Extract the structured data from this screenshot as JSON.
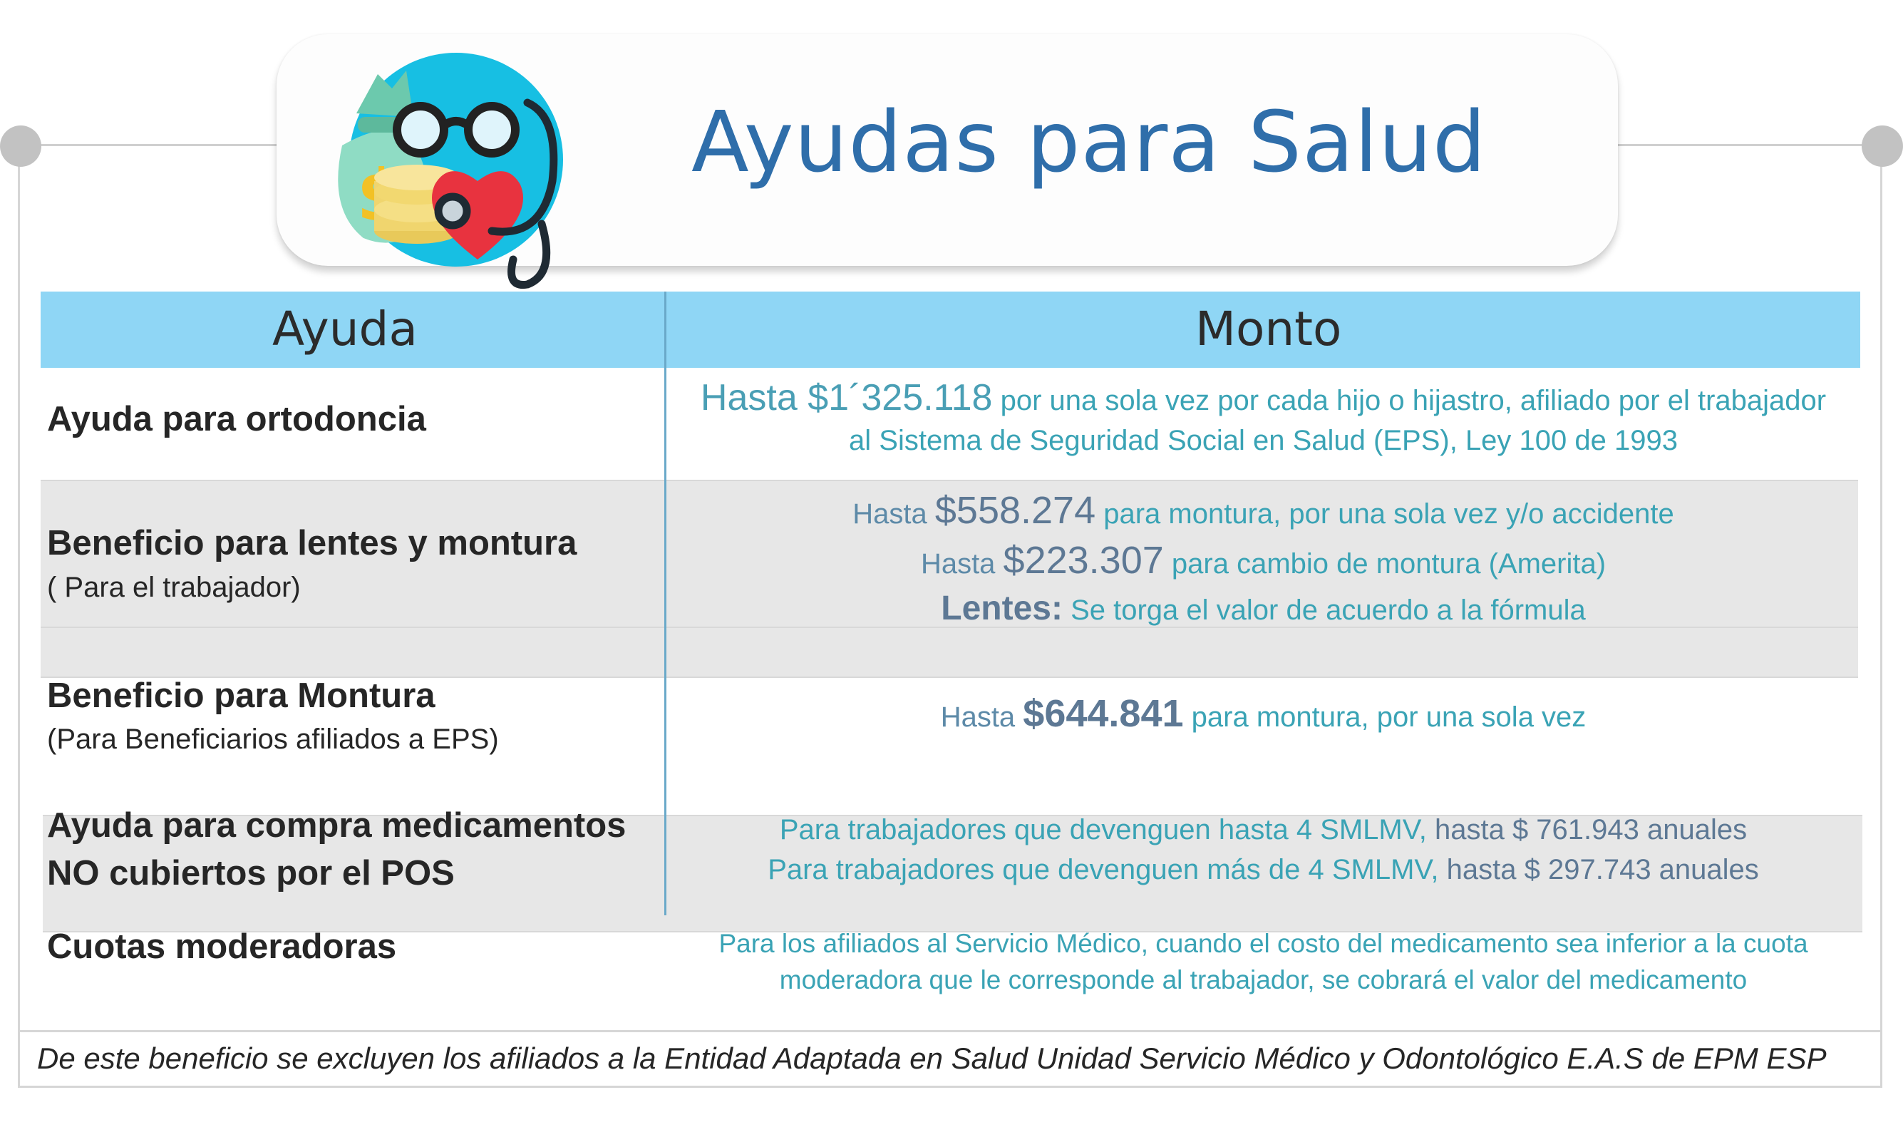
{
  "header": {
    "title": "Ayudas para Salud"
  },
  "table": {
    "col_ayuda": "Ayuda",
    "col_monto": "Monto",
    "rows": [
      {
        "title": "Ayuda para ortodoncia",
        "lines": [
          {
            "pre": "Hasta $1´325.118",
            "text": " por una sola vez por cada hijo o hijastro, afiliado por el trabajador"
          },
          {
            "text": "al Sistema de Seguridad Social en Salud (EPS), Ley 100 de 1993"
          }
        ]
      },
      {
        "title": "Beneficio para lentes y montura",
        "subtitle": "( Para el trabajador)",
        "lines": [
          {
            "pre": "Hasta ",
            "amount": "$558.274",
            "text": " para montura, por una sola vez y/o accidente"
          },
          {
            "pre": "Hasta ",
            "amount": "$223.307",
            "text": " para cambio de montura (Amerita)"
          },
          {
            "amount": "Lentes:",
            "text": " Se torga el valor de acuerdo a la fórmula"
          }
        ]
      },
      {
        "title": "Beneficio para Montura",
        "subtitle": "(Para Beneficiarios afiliados a EPS)",
        "lines": [
          {
            "pre": "Hasta ",
            "amount": "$644.841",
            "text": " para montura, por una sola vez"
          }
        ]
      },
      {
        "title_line1": "Ayuda para compra medicamentos",
        "title_line2": "NO cubiertos por el POS",
        "lines": [
          {
            "text": "Para trabajadores que devenguen hasta 4 SMLMV, ",
            "amount": "hasta $ 761.943 anuales"
          },
          {
            "text": "Para trabajadores que devenguen más de 4 SMLMV, ",
            "amount": "hasta $ 297.743 anuales"
          }
        ]
      },
      {
        "title": "Cuotas moderadoras",
        "lines": [
          {
            "text": "Para los afiliados al Servicio Médico, cuando el costo del medicamento sea inferior a la cuota"
          },
          {
            "text": "moderadora que le corresponde al trabajador, se cobrará el valor del medicamento"
          }
        ]
      }
    ]
  },
  "footer": "De este beneficio se excluyen los afiliados a la Entidad Adaptada en Salud Unidad Servicio Médico y Odontológico E.A.S de EPM ESP",
  "colors": {
    "header_band": "#8fd6f5",
    "title": "#2f6eaa",
    "teal_text": "#3aa3b5",
    "amount": "#5d7894",
    "band": "#e7e7e7"
  },
  "icons": [
    "money-bag-icon",
    "eyeglasses-icon",
    "coins-icon",
    "heart-icon",
    "stethoscope-icon"
  ]
}
